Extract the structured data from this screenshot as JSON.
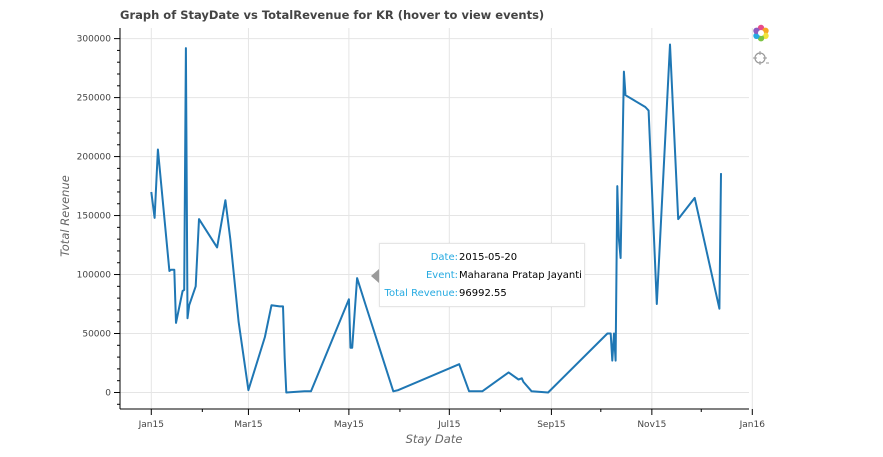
{
  "chart_data": {
    "type": "line",
    "title": "Graph of StayDate vs TotalRevenue for KR (hover to view events)",
    "xlabel": "Stay Date",
    "ylabel": "Total Revenue",
    "xlim": [
      "2014-12-27",
      "2016-01-13"
    ],
    "ylim": [
      -14000,
      309000
    ],
    "x_ticks": [
      {
        "date": "2015-01-15",
        "label": "Jan15"
      },
      {
        "date": "2015-03-15",
        "label": "Mar15"
      },
      {
        "date": "2015-05-15",
        "label": "May15"
      },
      {
        "date": "2015-07-15",
        "label": "Jul15"
      },
      {
        "date": "2015-09-15",
        "label": "Sep15"
      },
      {
        "date": "2015-11-15",
        "label": "Nov15"
      },
      {
        "date": "2016-01-15",
        "label": "Jan16"
      }
    ],
    "y_ticks": [
      0,
      50000,
      100000,
      150000,
      200000,
      250000,
      300000
    ],
    "grid": true,
    "series": [
      {
        "color": "#1f77b4",
        "x": [
          "2015-01-15",
          "2015-01-17",
          "2015-01-19",
          "2015-01-26",
          "2015-01-27",
          "2015-01-29",
          "2015-01-30",
          "2015-02-03",
          "2015-02-04",
          "2015-02-05",
          "2015-02-06",
          "2015-02-07",
          "2015-02-11",
          "2015-02-13",
          "2015-02-24",
          "2015-03-01",
          "2015-03-04",
          "2015-03-09",
          "2015-03-15",
          "2015-03-25",
          "2015-03-29",
          "2015-04-03",
          "2015-04-05",
          "2015-04-06",
          "2015-04-07",
          "2015-04-18",
          "2015-04-20",
          "2015-04-22",
          "2015-05-15",
          "2015-05-16",
          "2015-05-17",
          "2015-05-20",
          "2015-05-25",
          "2015-06-11",
          "2015-06-14",
          "2015-07-21",
          "2015-07-27",
          "2015-08-04",
          "2015-08-20",
          "2015-08-26",
          "2015-08-28",
          "2015-08-29",
          "2015-09-03",
          "2015-09-13",
          "2015-10-19",
          "2015-10-21",
          "2015-10-22",
          "2015-10-23",
          "2015-10-24",
          "2015-10-25",
          "2015-10-26",
          "2015-10-27",
          "2015-10-29",
          "2015-10-30",
          "2015-11-11",
          "2015-11-13",
          "2015-11-18",
          "2015-11-26",
          "2015-12-01",
          "2015-12-11",
          "2015-12-26",
          "2015-12-27"
        ],
        "y": [
          170000,
          148000,
          206000,
          103000,
          104000,
          104000,
          59000,
          86000,
          87000,
          292000,
          63000,
          74000,
          90000,
          147000,
          123000,
          163000,
          130000,
          60000,
          2000,
          47000,
          74000,
          73000,
          73000,
          29000,
          0,
          1000,
          1000,
          1000,
          79000,
          38000,
          38000,
          97000,
          75000,
          1000,
          2000,
          24000,
          1000,
          1000,
          17000,
          11000,
          12000,
          9000,
          1000,
          0,
          50000,
          50000,
          27000,
          50000,
          27000,
          175000,
          130000,
          114000,
          272000,
          252000,
          242000,
          239000,
          75000,
          295000,
          147000,
          165000,
          71000,
          186000
        ]
      }
    ],
    "hover_tooltip": {
      "date_label": "Date:",
      "date_value": "2015-05-20",
      "event_label": "Event:",
      "event_value": "Maharana Pratap Jayanti",
      "revenue_label": "Total Revenue:",
      "revenue_value": "96992.55"
    },
    "toolbar": {
      "tools": [
        "bokeh-logo-icon",
        "crosshair-hover-icon"
      ]
    }
  }
}
